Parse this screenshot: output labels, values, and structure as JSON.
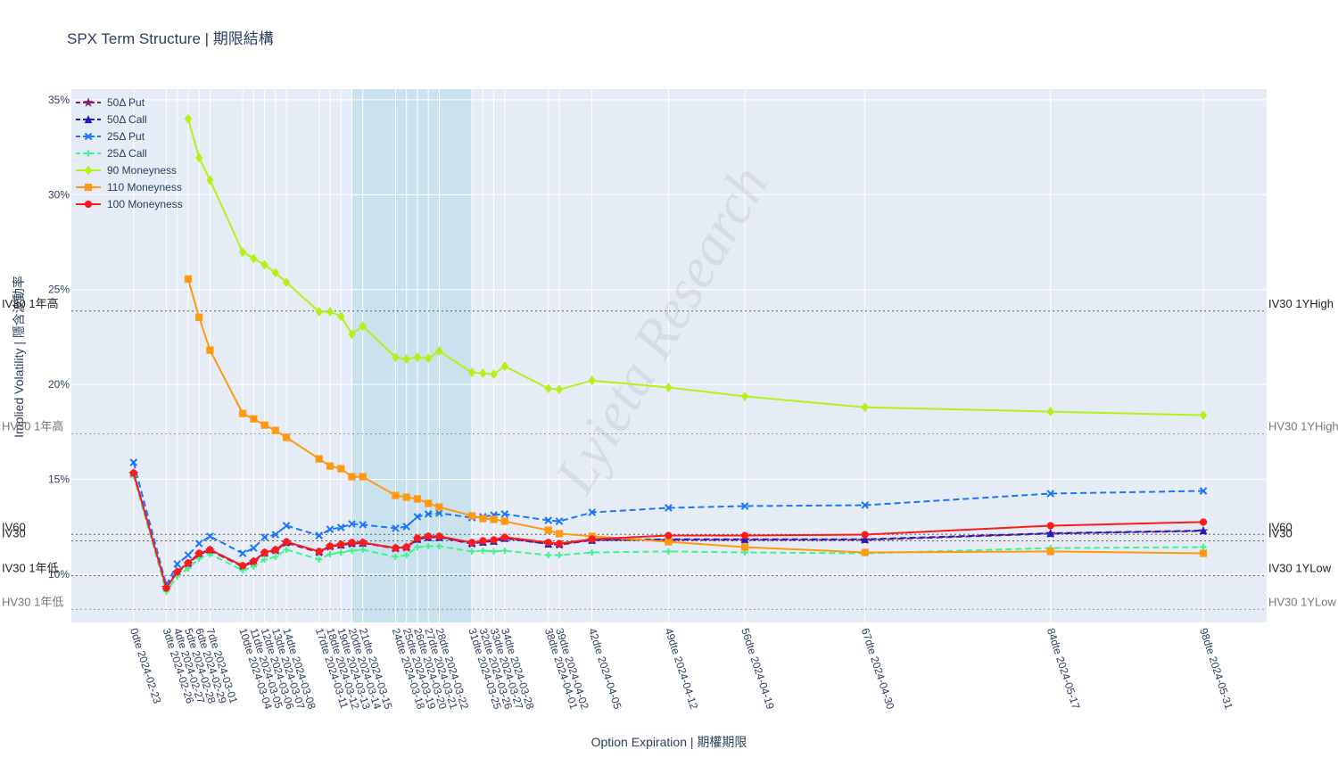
{
  "chart_data": {
    "type": "line",
    "title": "SPX Term Structure | 期限結構",
    "x_label": "Option Expiration | 期權期限",
    "y_label": "Implied Volatility | 隱含波動率",
    "watermark": "Lyieta Research",
    "x": [
      0,
      3,
      4,
      5,
      6,
      7,
      10,
      11,
      12,
      13,
      14,
      17,
      18,
      19,
      20,
      21,
      24,
      25,
      26,
      27,
      28,
      31,
      32,
      33,
      34,
      38,
      39,
      42,
      49,
      56,
      67,
      84,
      98
    ],
    "xlim": [
      -5.7,
      103.8
    ],
    "xticks": [
      {
        "value": 0,
        "label": "0dte 2024-02-23"
      },
      {
        "value": 3,
        "label": "3dte 2024-02-26"
      },
      {
        "value": 4,
        "label": "4dte 2024-02-27"
      },
      {
        "value": 5,
        "label": "5dte 2024-02-28"
      },
      {
        "value": 6,
        "label": "6dte 2024-02-29"
      },
      {
        "value": 7,
        "label": "7dte 2024-03-01"
      },
      {
        "value": 10,
        "label": "10dte 2024-03-04"
      },
      {
        "value": 11,
        "label": "11dte 2024-03-05"
      },
      {
        "value": 12,
        "label": "12dte 2024-03-06"
      },
      {
        "value": 13,
        "label": "13dte 2024-03-07"
      },
      {
        "value": 14,
        "label": "14dte 2024-03-08"
      },
      {
        "value": 17,
        "label": "17dte 2024-03-11"
      },
      {
        "value": 18,
        "label": "18dte 2024-03-12"
      },
      {
        "value": 19,
        "label": "19dte 2024-03-13"
      },
      {
        "value": 20,
        "label": "20dte 2024-03-14"
      },
      {
        "value": 21,
        "label": "21dte 2024-03-15"
      },
      {
        "value": 24,
        "label": "24dte 2024-03-18"
      },
      {
        "value": 25,
        "label": "25dte 2024-03-19"
      },
      {
        "value": 26,
        "label": "26dte 2024-03-20"
      },
      {
        "value": 27,
        "label": "27dte 2024-03-21"
      },
      {
        "value": 28,
        "label": "28dte 2024-03-22"
      },
      {
        "value": 31,
        "label": "31dte 2024-03-25"
      },
      {
        "value": 32,
        "label": "32dte 2024-03-26"
      },
      {
        "value": 33,
        "label": "33dte 2024-03-27"
      },
      {
        "value": 34,
        "label": "34dte 2024-03-28"
      },
      {
        "value": 38,
        "label": "38dte 2024-04-01"
      },
      {
        "value": 39,
        "label": "39dte 2024-04-02"
      },
      {
        "value": 42,
        "label": "42dte 2024-04-05"
      },
      {
        "value": 49,
        "label": "49dte 2024-04-12"
      },
      {
        "value": 56,
        "label": "56dte 2024-04-19"
      },
      {
        "value": 67,
        "label": "67dte 2024-04-30"
      },
      {
        "value": 84,
        "label": "84dte 2024-05-17"
      },
      {
        "value": 98,
        "label": "98dte 2024-05-31"
      }
    ],
    "ylim": [
      7.46,
      35.56
    ],
    "yticks": [
      {
        "value": 10,
        "label": "10%"
      },
      {
        "value": 15,
        "label": "15%"
      },
      {
        "value": 20,
        "label": "20%"
      },
      {
        "value": 25,
        "label": "25%"
      },
      {
        "value": 30,
        "label": "30%"
      },
      {
        "value": 35,
        "label": "35%"
      }
    ],
    "grid": true,
    "shade": [
      20,
      31
    ],
    "hlines": [
      {
        "value": 23.87,
        "label": "IV30 1年高",
        "label_right": "IV30 1YHigh",
        "color": "#222"
      },
      {
        "value": 17.4,
        "label": "HV30 1年高",
        "label_right": "HV30 1YHigh",
        "color": "#777"
      },
      {
        "value": 12.1,
        "label": "IV60",
        "label_right": "IV60",
        "color": "#222"
      },
      {
        "value": 11.76,
        "label": "IV30",
        "label_right": "IV30",
        "color": "#222"
      },
      {
        "value": 9.93,
        "label": "IV30 1年低",
        "label_right": "IV30 1YLow",
        "color": "#222"
      },
      {
        "value": 8.15,
        "label": "HV30 1年低",
        "label_right": "HV30 1YLow",
        "color": "#777"
      }
    ],
    "series": [
      {
        "name": "50Δ Put",
        "color": "#8b1a6b",
        "dash": true,
        "marker": "star",
        "values": [
          15.3,
          9.3,
          10.1,
          10.55,
          11.05,
          11.25,
          10.4,
          10.65,
          11.1,
          11.25,
          11.65,
          11.15,
          11.45,
          11.55,
          11.6,
          11.65,
          11.35,
          11.4,
          11.85,
          11.95,
          11.95,
          11.6,
          11.7,
          11.75,
          11.9,
          11.6,
          11.55,
          11.8,
          11.81,
          11.81,
          11.81,
          12.14,
          12.28
        ]
      },
      {
        "name": "50Δ Call",
        "color": "#1f1fbf",
        "dash": true,
        "marker": "triangle",
        "values": [
          15.35,
          9.4,
          10.15,
          10.6,
          11.1,
          11.3,
          10.45,
          10.7,
          11.15,
          11.3,
          11.7,
          11.2,
          11.5,
          11.55,
          11.65,
          11.65,
          11.4,
          11.45,
          11.85,
          11.95,
          11.95,
          11.65,
          11.7,
          11.75,
          11.9,
          11.6,
          11.6,
          11.8,
          11.84,
          11.84,
          11.84,
          12.16,
          12.3
        ]
      },
      {
        "name": "25Δ Put",
        "color": "#1a75ff",
        "dash": true,
        "marker": "x",
        "values": [
          15.89,
          9.41,
          10.54,
          11.01,
          11.62,
          12.0,
          11.1,
          11.38,
          11.95,
          12.09,
          12.56,
          12.04,
          12.37,
          12.46,
          12.65,
          12.61,
          12.42,
          12.51,
          13.03,
          13.17,
          13.22,
          12.98,
          13.03,
          13.12,
          13.17,
          12.84,
          12.79,
          13.26,
          13.5,
          13.59,
          13.64,
          14.25,
          14.39
        ]
      },
      {
        "name": "25Δ Call",
        "color": "#3df58a",
        "dash": true,
        "marker": "cross",
        "values": [
          15.19,
          9.08,
          9.88,
          10.31,
          10.82,
          11.06,
          10.21,
          10.4,
          10.78,
          10.92,
          11.29,
          10.78,
          11.06,
          11.15,
          11.24,
          11.29,
          10.92,
          11.01,
          11.43,
          11.48,
          11.48,
          11.2,
          11.24,
          11.2,
          11.24,
          11.01,
          11.01,
          11.15,
          11.2,
          11.15,
          11.1,
          11.38,
          11.43
        ]
      },
      {
        "name": "90 Moneyness",
        "color": "#b5f01a",
        "dash": false,
        "marker": "diamond",
        "values": [
          null,
          null,
          null,
          34.0,
          31.95,
          30.77,
          26.97,
          26.64,
          26.31,
          25.89,
          25.38,
          23.83,
          23.83,
          23.59,
          22.65,
          23.08,
          21.43,
          21.34,
          21.43,
          21.38,
          21.76,
          20.63,
          20.59,
          20.54,
          20.96,
          19.79,
          19.74,
          20.21,
          19.84,
          19.37,
          18.8,
          18.57,
          18.38
        ]
      },
      {
        "name": "110 Moneyness",
        "color": "#ff9912",
        "dash": false,
        "marker": "square",
        "values": [
          null,
          null,
          null,
          25.56,
          23.54,
          21.81,
          18.47,
          18.19,
          17.86,
          17.58,
          17.21,
          16.08,
          15.7,
          15.56,
          15.14,
          15.14,
          14.15,
          14.06,
          13.97,
          13.73,
          13.54,
          13.08,
          12.93,
          12.89,
          12.79,
          12.32,
          12.14,
          12.0,
          11.71,
          11.43,
          11.15,
          11.2,
          11.1
        ]
      },
      {
        "name": "100 Moneyness",
        "color": "#ff1a1a",
        "dash": false,
        "marker": "circle",
        "values": [
          15.33,
          9.27,
          10.12,
          10.59,
          11.1,
          11.29,
          10.45,
          10.68,
          11.15,
          11.29,
          11.71,
          11.2,
          11.48,
          11.57,
          11.67,
          11.67,
          11.38,
          11.43,
          11.9,
          12.0,
          12.0,
          11.67,
          11.76,
          11.81,
          11.95,
          11.67,
          11.62,
          11.85,
          12.04,
          12.04,
          12.09,
          12.56,
          12.75
        ]
      }
    ]
  }
}
